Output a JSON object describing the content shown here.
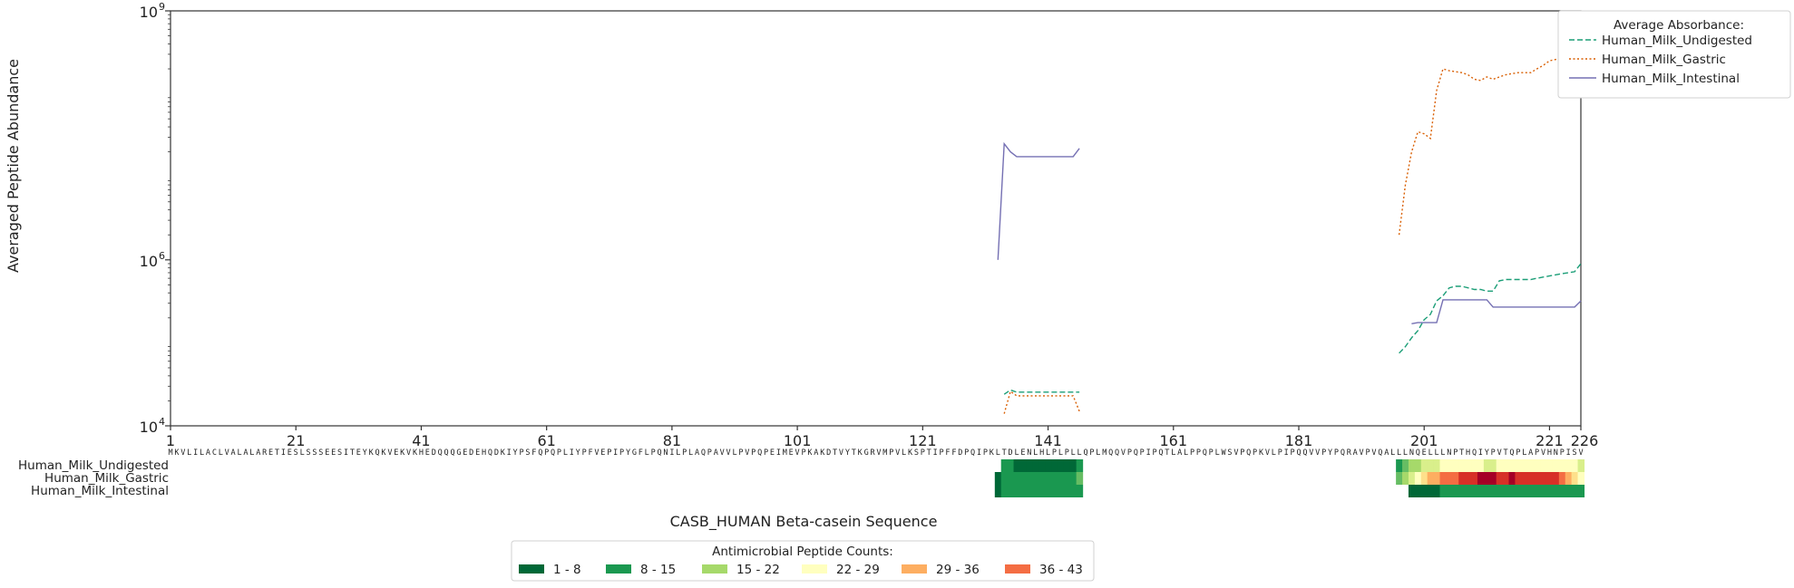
{
  "chart_data": {
    "type": "line",
    "ylabel": "Averaged Peptide Abundance",
    "xlabel": "CASB_HUMAN Beta-casein Sequence",
    "y_scale": "log",
    "ylim": [
      10000,
      1000000000
    ],
    "xlim": [
      1,
      226
    ],
    "y_ticks": [
      {
        "value": 10000,
        "base": "10",
        "exp": "4"
      },
      {
        "value": 1000000,
        "base": "10",
        "exp": "6"
      },
      {
        "value": 1000000000,
        "base": "10",
        "exp": "9"
      }
    ],
    "x_ticks": [
      1,
      21,
      41,
      61,
      81,
      101,
      121,
      141,
      161,
      181,
      201,
      221,
      226
    ],
    "sequence": "MKVLILACLVALALARETIESLSSSEESITEYKQKVEKVKHEDQQQGEDEHQDKIYPSFQPQPLIYPFVEPIPYGFLPQNILPLAQPAVVLPVPQPEIMEVPKAKDTVYTKGRVMPVLKSPTIPFFDPQIPKLTDLENLHLPLPLLQPLMQQVPQPIPQTLALPPQPLWSVPQPKVLPIPQQVVPYPQRAVPVQALLLNQELLLNPTHQIYPVTQPLAPVHNPISV",
    "legend": {
      "title": "Average Absorbance:",
      "position": "outside-top-right",
      "entries": [
        "Human_Milk_Undigested",
        "Human_Milk_Gastric",
        "Human_Milk_Intestinal"
      ]
    },
    "series": [
      {
        "name": "Human_Milk_Undigested",
        "color": "#1b9e77",
        "style": "dashed",
        "segments": [
          {
            "x": [
              134,
              135,
              136,
              137,
              138,
              139,
              140,
              141,
              142,
              143,
              144,
              145,
              146
            ],
            "y": [
              24000,
              27000,
              25500,
              25500,
              25500,
              25500,
              25500,
              25500,
              25500,
              25500,
              25500,
              25500,
              25500
            ]
          },
          {
            "x": [
              197,
              198,
              199,
              200,
              201,
              202,
              203,
              204,
              205,
              206,
              207,
              208,
              209,
              210,
              211,
              212,
              213,
              214,
              215,
              216,
              217,
              218,
              219,
              220,
              221,
              222,
              223,
              224,
              225,
              226
            ],
            "y": [
              75000,
              90000,
              115000,
              140000,
              190000,
              220000,
              320000,
              370000,
              460000,
              480000,
              480000,
              460000,
              440000,
              440000,
              420000,
              420000,
              560000,
              580000,
              580000,
              580000,
              580000,
              580000,
              600000,
              620000,
              640000,
              660000,
              680000,
              700000,
              720000,
              900000
            ]
          }
        ]
      },
      {
        "name": "Human_Milk_Gastric",
        "color": "#d95f02",
        "style": "dotted",
        "segments": [
          {
            "x": [
              134,
              135,
              136,
              137,
              138,
              139,
              140,
              141,
              142,
              143,
              144,
              145,
              146
            ],
            "y": [
              14000,
              26000,
              23000,
              23000,
              23000,
              23000,
              23000,
              23000,
              23000,
              23000,
              23000,
              23000,
              15000
            ]
          },
          {
            "x": [
              197,
              198,
              199,
              200,
              201,
              202,
              203,
              204,
              205,
              206,
              207,
              208,
              209,
              210,
              211,
              212,
              213,
              214,
              215,
              216,
              217,
              218,
              219,
              220,
              221,
              222,
              223,
              224,
              225,
              226
            ],
            "y": [
              2000000,
              8000000,
              20000000,
              35000000,
              33000000,
              29000000,
              110000000,
              200000000,
              190000000,
              185000000,
              180000000,
              170000000,
              150000000,
              145000000,
              160000000,
              150000000,
              160000000,
              170000000,
              175000000,
              180000000,
              180000000,
              180000000,
              200000000,
              220000000,
              250000000,
              260000000,
              290000000,
              320000000,
              380000000,
              600000000
            ]
          }
        ]
      },
      {
        "name": "Human_Milk_Intestinal",
        "color": "#7570b3",
        "style": "solid",
        "segments": [
          {
            "x": [
              133,
              134,
              135,
              136,
              137,
              138,
              139,
              140,
              141,
              142,
              143,
              144,
              145,
              146
            ],
            "y": [
              1000000,
              25000000,
              20000000,
              17500000,
              17500000,
              17500000,
              17500000,
              17500000,
              17500000,
              17500000,
              17500000,
              17500000,
              17500000,
              22000000
            ]
          },
          {
            "x": [
              199,
              200,
              201,
              202,
              203,
              204,
              205,
              206,
              207,
              208,
              209,
              210,
              211,
              212,
              213,
              214,
              215,
              216,
              217,
              218,
              219,
              220,
              221,
              222,
              223,
              224,
              225,
              226
            ],
            "y": [
              170000,
              175000,
              175000,
              175000,
              175000,
              330000,
              330000,
              330000,
              330000,
              330000,
              330000,
              330000,
              330000,
              270000,
              270000,
              270000,
              270000,
              270000,
              270000,
              270000,
              270000,
              270000,
              270000,
              270000,
              270000,
              270000,
              270000,
              320000
            ]
          }
        ]
      }
    ],
    "heatmap": {
      "rows": [
        "Human_Milk_Undigested",
        "Human_Milk_Gastric",
        "Human_Milk_Intestinal"
      ],
      "blocks": [
        {
          "row": 0,
          "start": 134,
          "end": 146,
          "colors": [
            "#1a9850",
            "#1a9850",
            "#006837",
            "#006837",
            "#006837",
            "#006837",
            "#006837",
            "#006837",
            "#006837",
            "#006837",
            "#006837",
            "#006837",
            "#1a9850"
          ]
        },
        {
          "row": 0,
          "start": 197,
          "end": 226,
          "colors": [
            "#1a9850",
            "#66bd63",
            "#a6d96a",
            "#a6d96a",
            "#d9ef8b",
            "#d9ef8b",
            "#d9ef8b",
            "#ffffbf",
            "#ffffbf",
            "#ffffbf",
            "#ffffbf",
            "#ffffbf",
            "#ffffbf",
            "#ffffbf",
            "#d9ef8b",
            "#d9ef8b",
            "#ffffbf",
            "#ffffbf",
            "#ffffbf",
            "#ffffbf",
            "#ffffbf",
            "#ffffbf",
            "#ffffbf",
            "#ffffbf",
            "#ffffbf",
            "#ffffbf",
            "#ffffbf",
            "#ffffbf",
            "#ffffbf",
            "#d9ef8b"
          ]
        },
        {
          "row": 1,
          "start": 133,
          "end": 146,
          "colors": [
            "#006837",
            "#1a9850",
            "#1a9850",
            "#1a9850",
            "#1a9850",
            "#1a9850",
            "#1a9850",
            "#1a9850",
            "#1a9850",
            "#1a9850",
            "#1a9850",
            "#1a9850",
            "#1a9850",
            "#66bd63"
          ]
        },
        {
          "row": 1,
          "start": 197,
          "end": 226,
          "colors": [
            "#66bd63",
            "#a6d96a",
            "#d9ef8b",
            "#ffffbf",
            "#fee08b",
            "#fdae61",
            "#fdae61",
            "#f46d43",
            "#f46d43",
            "#f46d43",
            "#d73027",
            "#d73027",
            "#d73027",
            "#a50026",
            "#a50026",
            "#a50026",
            "#d73027",
            "#d73027",
            "#a50026",
            "#d73027",
            "#d73027",
            "#d73027",
            "#d73027",
            "#d73027",
            "#d73027",
            "#d73027",
            "#f46d43",
            "#fdae61",
            "#fee08b",
            "#ffffbf"
          ]
        },
        {
          "row": 2,
          "start": 133,
          "end": 146,
          "colors": [
            "#006837",
            "#1a9850",
            "#1a9850",
            "#1a9850",
            "#1a9850",
            "#1a9850",
            "#1a9850",
            "#1a9850",
            "#1a9850",
            "#1a9850",
            "#1a9850",
            "#1a9850",
            "#1a9850",
            "#1a9850"
          ]
        },
        {
          "row": 2,
          "start": 199,
          "end": 226,
          "colors": [
            "#006837",
            "#006837",
            "#006837",
            "#006837",
            "#006837",
            "#1a9850",
            "#1a9850",
            "#1a9850",
            "#1a9850",
            "#1a9850",
            "#1a9850",
            "#1a9850",
            "#1a9850",
            "#1a9850",
            "#1a9850",
            "#1a9850",
            "#1a9850",
            "#1a9850",
            "#1a9850",
            "#1a9850",
            "#1a9850",
            "#1a9850",
            "#1a9850",
            "#1a9850",
            "#1a9850",
            "#1a9850",
            "#1a9850",
            "#1a9850"
          ]
        }
      ]
    },
    "count_legend": {
      "title": "Antimicrobial Peptide Counts:",
      "position": "bottom-center",
      "entries": [
        {
          "label": "1 - 8",
          "color": "#006837"
        },
        {
          "label": "8 - 15",
          "color": "#1a9850"
        },
        {
          "label": "15 - 22",
          "color": "#a6d96a"
        },
        {
          "label": "22 - 29",
          "color": "#ffffbf"
        },
        {
          "label": "29 - 36",
          "color": "#fdae61"
        },
        {
          "label": "36 - 43",
          "color": "#f46d43"
        }
      ]
    }
  }
}
